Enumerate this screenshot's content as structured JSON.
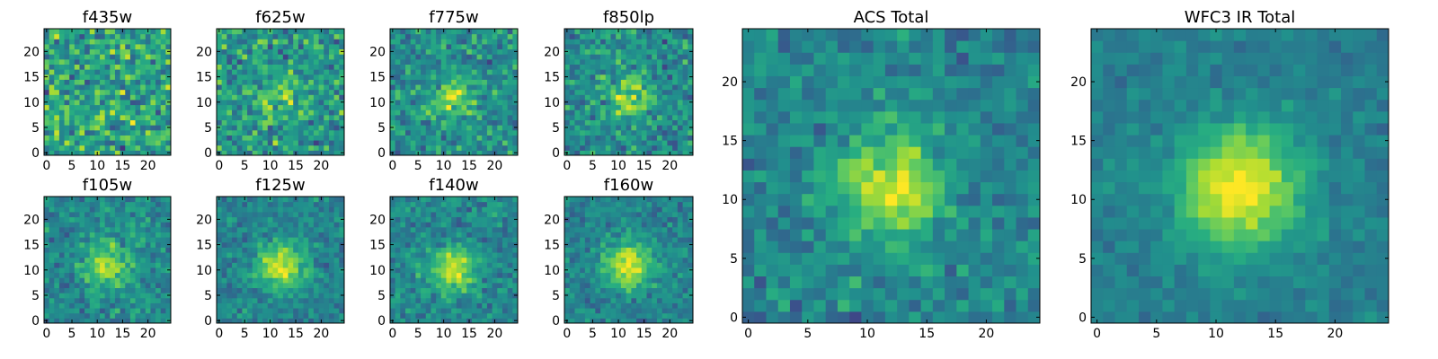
{
  "figure": {
    "colormap": "viridis",
    "colors": {
      "low": "#440154",
      "mid": "#21918c",
      "high": "#fde725",
      "frame": "#000000",
      "background": "#ffffff"
    }
  },
  "chart_data": [
    {
      "type": "heatmap",
      "title": "f435w",
      "grid": [
        25,
        25
      ],
      "xticks": [
        "0",
        "5",
        "10",
        "15",
        "20"
      ],
      "yticks": [
        "0",
        "5",
        "10",
        "15",
        "20"
      ],
      "xlim": [
        -0.5,
        24.5
      ],
      "ylim": [
        -0.5,
        24.5
      ],
      "source": {
        "x": 12,
        "y": 11
      },
      "signal": 0.0,
      "spread": 4.0,
      "noise": 0.42,
      "seed": 11
    },
    {
      "type": "heatmap",
      "title": "f625w",
      "grid": [
        25,
        25
      ],
      "xticks": [
        "0",
        "5",
        "10",
        "15",
        "20"
      ],
      "yticks": [
        "0",
        "5",
        "10",
        "15",
        "20"
      ],
      "xlim": [
        -0.5,
        24.5
      ],
      "ylim": [
        -0.5,
        24.5
      ],
      "source": {
        "x": 12,
        "y": 11
      },
      "signal": 0.18,
      "spread": 3.2,
      "noise": 0.36,
      "seed": 23
    },
    {
      "type": "heatmap",
      "title": "f775w",
      "grid": [
        25,
        25
      ],
      "xticks": [
        "0",
        "5",
        "10",
        "15",
        "20"
      ],
      "yticks": [
        "0",
        "5",
        "10",
        "15",
        "20"
      ],
      "xlim": [
        -0.5,
        24.5
      ],
      "ylim": [
        -0.5,
        24.5
      ],
      "source": {
        "x": 12,
        "y": 11
      },
      "signal": 0.32,
      "spread": 2.8,
      "noise": 0.3,
      "seed": 37
    },
    {
      "type": "heatmap",
      "title": "f850lp",
      "grid": [
        25,
        25
      ],
      "xticks": [
        "0",
        "5",
        "10",
        "15",
        "20"
      ],
      "yticks": [
        "0",
        "5",
        "10",
        "15",
        "20"
      ],
      "xlim": [
        -0.5,
        24.5
      ],
      "ylim": [
        -0.5,
        24.5
      ],
      "source": {
        "x": 12,
        "y": 11
      },
      "signal": 0.36,
      "spread": 2.8,
      "noise": 0.3,
      "seed": 41
    },
    {
      "type": "heatmap",
      "title": "f105w",
      "grid": [
        25,
        25
      ],
      "xticks": [
        "0",
        "5",
        "10",
        "15",
        "20"
      ],
      "yticks": [
        "0",
        "5",
        "10",
        "15",
        "20"
      ],
      "xlim": [
        -0.5,
        24.5
      ],
      "ylim": [
        -0.5,
        24.5
      ],
      "source": {
        "x": 12,
        "y": 11
      },
      "signal": 0.42,
      "spread": 3.0,
      "noise": 0.24,
      "seed": 53
    },
    {
      "type": "heatmap",
      "title": "f125w",
      "grid": [
        25,
        25
      ],
      "xticks": [
        "0",
        "5",
        "10",
        "15",
        "20"
      ],
      "yticks": [
        "0",
        "5",
        "10",
        "15",
        "20"
      ],
      "xlim": [
        -0.5,
        24.5
      ],
      "ylim": [
        -0.5,
        24.5
      ],
      "source": {
        "x": 12,
        "y": 11
      },
      "signal": 0.5,
      "spread": 3.2,
      "noise": 0.2,
      "seed": 67
    },
    {
      "type": "heatmap",
      "title": "f140w",
      "grid": [
        25,
        25
      ],
      "xticks": [
        "0",
        "5",
        "10",
        "15",
        "20"
      ],
      "yticks": [
        "0",
        "5",
        "10",
        "15",
        "20"
      ],
      "xlim": [
        -0.5,
        24.5
      ],
      "ylim": [
        -0.5,
        24.5
      ],
      "source": {
        "x": 12,
        "y": 10
      },
      "signal": 0.46,
      "spread": 3.0,
      "noise": 0.22,
      "seed": 71
    },
    {
      "type": "heatmap",
      "title": "f160w",
      "grid": [
        25,
        25
      ],
      "xticks": [
        "0",
        "5",
        "10",
        "15",
        "20"
      ],
      "yticks": [
        "0",
        "5",
        "10",
        "15",
        "20"
      ],
      "xlim": [
        -0.5,
        24.5
      ],
      "ylim": [
        -0.5,
        24.5
      ],
      "source": {
        "x": 12,
        "y": 11
      },
      "signal": 0.5,
      "spread": 3.2,
      "noise": 0.2,
      "seed": 83
    },
    {
      "type": "heatmap",
      "title": "ACS Total",
      "grid": [
        25,
        25
      ],
      "xticks": [
        "0",
        "5",
        "10",
        "15",
        "20"
      ],
      "yticks": [
        "0",
        "5",
        "10",
        "15",
        "20"
      ],
      "xlim": [
        -0.5,
        24.5
      ],
      "ylim": [
        -0.5,
        24.5
      ],
      "source": {
        "x": 12,
        "y": 11
      },
      "signal": 0.5,
      "spread": 3.0,
      "noise": 0.22,
      "seed": 97
    },
    {
      "type": "heatmap",
      "title": "WFC3 IR Total",
      "grid": [
        25,
        25
      ],
      "xticks": [
        "0",
        "5",
        "10",
        "15",
        "20"
      ],
      "yticks": [
        "0",
        "5",
        "10",
        "15",
        "20"
      ],
      "xlim": [
        -0.5,
        24.5
      ],
      "ylim": [
        -0.5,
        24.5
      ],
      "source": {
        "x": 12,
        "y": 11
      },
      "signal": 0.58,
      "spread": 3.6,
      "noise": 0.12,
      "seed": 101
    }
  ]
}
